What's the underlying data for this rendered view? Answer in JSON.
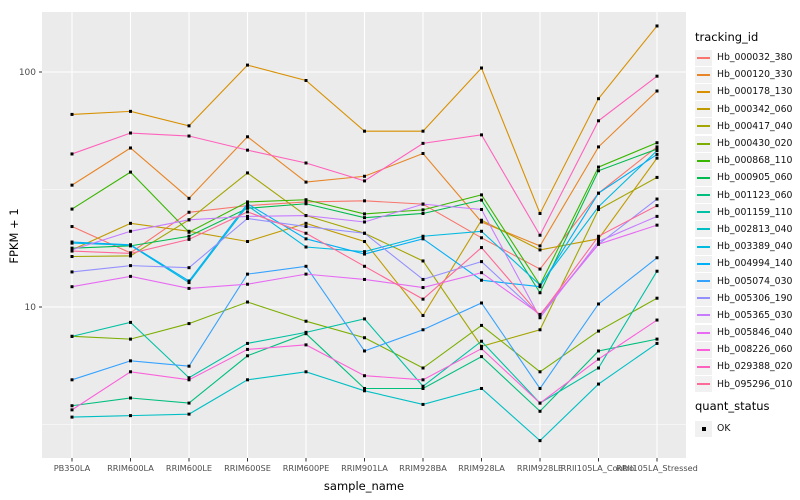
{
  "figure": {
    "background": "#FFFFFF",
    "panel_background": "#EBEBEB",
    "grid_color": "#FFFFFF",
    "tick_text_color": "#4D4D4D"
  },
  "chart_data": {
    "type": "line",
    "xlabel": "sample_name",
    "ylabel": "FPKM + 1",
    "y_scale": "log10",
    "ylim": [
      2.28,
      180
    ],
    "grid": "on",
    "legend_position": "right",
    "y_ticks": [
      {
        "value": 100,
        "label": "100"
      },
      {
        "value": 10,
        "label": "10"
      }
    ],
    "y_minor_gridlines": [
      3.162,
      31.62
    ],
    "categories": [
      "PB350LA",
      "RRIM600LA",
      "RRIM600LE",
      "RRIM600SE",
      "RRIM600PE",
      "RRIM901LA",
      "RRIM928BA",
      "RRIM928LA",
      "RRIM928LE",
      "RRII105LA_Control",
      "RRII105LA_Stressed"
    ],
    "series": [
      {
        "name": "Hb_000032_380",
        "color": "#F8766D",
        "values": [
          22,
          17,
          25.3,
          27,
          28,
          28.3,
          27.4,
          19.7,
          14.5,
          30.5,
          48
        ]
      },
      {
        "name": "Hb_000120_330",
        "color": "#E88526",
        "values": [
          33,
          47.5,
          29,
          53,
          34,
          36,
          45,
          23,
          18.2,
          48,
          83
        ]
      },
      {
        "name": "Hb_000178_130",
        "color": "#D89000",
        "values": [
          66,
          68,
          59,
          107,
          92,
          56,
          56,
          104,
          25,
          77,
          157
        ]
      },
      {
        "name": "Hb_000342_060",
        "color": "#C09B00",
        "values": [
          17.5,
          22.7,
          21,
          19,
          22.7,
          19,
          9.2,
          23.4,
          17.5,
          19.5,
          43
        ]
      },
      {
        "name": "Hb_000417_040",
        "color": "#A3A500",
        "values": [
          16.4,
          16.5,
          23.5,
          37.2,
          24.5,
          20.6,
          15.7,
          6.8,
          8,
          26,
          35.6
        ]
      },
      {
        "name": "Hb_000430_020",
        "color": "#7CAE00",
        "values": [
          7.5,
          7.3,
          8.5,
          10.5,
          8.7,
          7.4,
          5.5,
          8.35,
          5.3,
          7.9,
          10.9
        ]
      },
      {
        "name": "Hb_000868_110",
        "color": "#39B600",
        "values": [
          26.1,
          37.5,
          20.8,
          28,
          28.6,
          24.9,
          25.9,
          30,
          12.4,
          39.4,
          50
        ]
      },
      {
        "name": "Hb_000905_060",
        "color": "#00BB4E",
        "values": [
          17.8,
          18.2,
          20,
          26.3,
          27.5,
          24,
          25,
          28.5,
          11.5,
          38,
          47
        ]
      },
      {
        "name": "Hb_001123_060",
        "color": "#00BF7D",
        "values": [
          3.8,
          4.1,
          3.9,
          6.2,
          7.7,
          4.5,
          4.5,
          6.15,
          3.6,
          6.5,
          7.3
        ]
      },
      {
        "name": "Hb_001159_110",
        "color": "#00C1A3",
        "values": [
          7.5,
          8.6,
          5.0,
          7.0,
          7.8,
          8.9,
          4.6,
          7.15,
          3.9,
          5.5,
          14.2
        ]
      },
      {
        "name": "Hb_002813_040",
        "color": "#00BFC4",
        "values": [
          3.4,
          3.45,
          3.5,
          4.9,
          5.3,
          4.4,
          3.85,
          4.5,
          2.7,
          4.7,
          7.0
        ]
      },
      {
        "name": "Hb_003389_040",
        "color": "#00BAE0",
        "values": [
          18.7,
          18.3,
          12.7,
          27,
          18,
          17.2,
          20,
          21,
          12.4,
          26.7,
          46.3
        ]
      },
      {
        "name": "Hb_004994_140",
        "color": "#00B0F6",
        "values": [
          18.9,
          18.4,
          12.9,
          27.5,
          19.5,
          16.8,
          19.5,
          13,
          12.2,
          30.5,
          44.6
        ]
      },
      {
        "name": "Hb_005074_030",
        "color": "#35A2FF",
        "values": [
          4.9,
          5.9,
          5.6,
          13.8,
          14.9,
          6.5,
          8.0,
          10.4,
          4.5,
          10.3,
          16.2
        ]
      },
      {
        "name": "Hb_005306_190",
        "color": "#9590FF",
        "values": [
          14.1,
          15,
          14.7,
          23.8,
          22,
          20.6,
          13.1,
          15.6,
          9.2,
          18.5,
          28.8
        ]
      },
      {
        "name": "Hb_005365_030",
        "color": "#C77CFF",
        "values": [
          17.5,
          21,
          23.5,
          24.3,
          24.5,
          23,
          27.4,
          26,
          9.0,
          19,
          24.3
        ]
      },
      {
        "name": "Hb_005846_040",
        "color": "#E76BF3",
        "values": [
          12.2,
          13.5,
          12,
          12.5,
          13.8,
          13.1,
          12.1,
          14,
          9.3,
          18.5,
          22.3
        ]
      },
      {
        "name": "Hb_008226_060",
        "color": "#FA62DB",
        "values": [
          3.65,
          5.3,
          4.9,
          6.6,
          6.9,
          5.1,
          4.9,
          6.65,
          3.9,
          6.0,
          8.8
        ]
      },
      {
        "name": "Hb_029388_020",
        "color": "#FF62BC",
        "values": [
          44.8,
          55,
          53.4,
          46.5,
          41,
          34.4,
          49.7,
          54,
          20.2,
          62,
          96
        ]
      },
      {
        "name": "Hb_095296_010",
        "color": "#FF6A98",
        "values": [
          17.3,
          16.9,
          19.4,
          25.4,
          20.6,
          14.9,
          10.8,
          17.9,
          9.2,
          20,
          27
        ]
      }
    ],
    "marker": {
      "shape": "square",
      "color": "#000000"
    },
    "legend": {
      "color_title": "tracking_id",
      "shape_title": "quant_status",
      "shape_items": [
        {
          "label": "OK"
        }
      ]
    }
  }
}
